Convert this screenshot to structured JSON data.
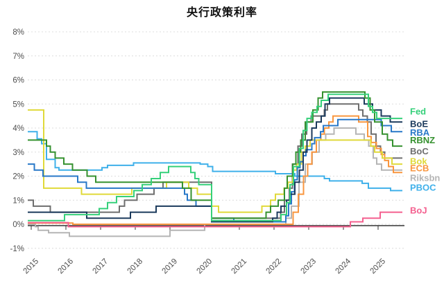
{
  "title": "央行政策利率",
  "chart_data": {
    "type": "line",
    "title": "央行政策利率",
    "line_style": "step-after",
    "grid": true,
    "legend_position": "right",
    "x_axis": {
      "range": [
        2014.9,
        2025.7
      ],
      "ticks": [
        2015,
        2016,
        2017,
        2018,
        2019,
        2020,
        2021,
        2022,
        2023,
        2024,
        2025
      ],
      "labels": [
        "2015",
        "2016",
        "2017",
        "2018",
        "2019",
        "2020",
        "2021",
        "2022",
        "2023",
        "2024",
        "2025"
      ],
      "zero_line": true
    },
    "y_axis": {
      "range": [
        -1.4,
        8.6
      ],
      "ticks": [
        8,
        7,
        6,
        5,
        4,
        3,
        2,
        1,
        0,
        -1
      ],
      "labels": [
        "8%",
        "7%",
        "6%",
        "5%",
        "4%",
        "3%",
        "2%",
        "1%",
        "0%",
        "-1%"
      ]
    },
    "colors": {
      "grid": "#dcdcdc",
      "axis_text": "#4d4d4d",
      "zero_axis": "#333333",
      "title": "#111111"
    },
    "series": [
      {
        "name": "PBOC",
        "color": "#3fb0ea",
        "legend_y_pct": 1.53,
        "points": [
          [
            2014.9,
            3.85
          ],
          [
            2015.17,
            3.55
          ],
          [
            2015.3,
            3.35
          ],
          [
            2015.44,
            2.7
          ],
          [
            2015.69,
            2.35
          ],
          [
            2015.8,
            2.25
          ],
          [
            2017.04,
            2.35
          ],
          [
            2017.2,
            2.45
          ],
          [
            2017.95,
            2.55
          ],
          [
            2019.87,
            2.5
          ],
          [
            2020.09,
            2.4
          ],
          [
            2020.23,
            2.2
          ],
          [
            2022.04,
            2.1
          ],
          [
            2022.6,
            2.0
          ],
          [
            2023.45,
            1.9
          ],
          [
            2023.6,
            1.8
          ],
          [
            2024.54,
            1.7
          ],
          [
            2024.72,
            1.5
          ],
          [
            2025.36,
            1.4
          ]
        ]
      },
      {
        "name": "Riksbn",
        "color": "#b5b5b5",
        "legend_y_pct": 1.93,
        "points": [
          [
            2014.9,
            0.0
          ],
          [
            2015.12,
            -0.1
          ],
          [
            2015.2,
            -0.25
          ],
          [
            2015.5,
            -0.35
          ],
          [
            2016.1,
            -0.5
          ],
          [
            2019.0,
            -0.25
          ],
          [
            2020.0,
            0.0
          ],
          [
            2022.34,
            0.25
          ],
          [
            2022.5,
            0.75
          ],
          [
            2022.72,
            1.75
          ],
          [
            2022.9,
            2.5
          ],
          [
            2023.1,
            3.0
          ],
          [
            2023.3,
            3.5
          ],
          [
            2023.49,
            3.75
          ],
          [
            2023.73,
            4.0
          ],
          [
            2024.36,
            3.75
          ],
          [
            2024.6,
            3.5
          ],
          [
            2024.73,
            3.25
          ],
          [
            2024.86,
            2.75
          ],
          [
            2024.96,
            2.5
          ],
          [
            2025.1,
            2.25
          ]
        ]
      },
      {
        "name": "BoC",
        "color": "#6e6e6e",
        "legend_y_pct": 3.04,
        "points": [
          [
            2014.9,
            1.0
          ],
          [
            2015.06,
            0.75
          ],
          [
            2015.55,
            0.5
          ],
          [
            2017.54,
            0.75
          ],
          [
            2017.69,
            1.0
          ],
          [
            2018.05,
            1.25
          ],
          [
            2018.54,
            1.5
          ],
          [
            2018.8,
            1.75
          ],
          [
            2020.2,
            0.25
          ],
          [
            2022.19,
            0.5
          ],
          [
            2022.3,
            1.0
          ],
          [
            2022.44,
            1.5
          ],
          [
            2022.53,
            2.5
          ],
          [
            2022.69,
            3.25
          ],
          [
            2022.8,
            3.75
          ],
          [
            2022.94,
            4.25
          ],
          [
            2023.07,
            4.5
          ],
          [
            2023.45,
            4.75
          ],
          [
            2023.54,
            5.0
          ],
          [
            2024.44,
            4.75
          ],
          [
            2024.56,
            4.5
          ],
          [
            2024.69,
            4.25
          ],
          [
            2024.8,
            3.75
          ],
          [
            2024.94,
            3.25
          ],
          [
            2025.07,
            3.0
          ],
          [
            2025.19,
            2.75
          ]
        ]
      },
      {
        "name": "ECB",
        "color": "#f9963f",
        "legend_y_pct": 2.33,
        "points": [
          [
            2014.9,
            0.05
          ],
          [
            2016.2,
            0.0
          ],
          [
            2022.55,
            0.5
          ],
          [
            2022.7,
            1.25
          ],
          [
            2022.85,
            2.0
          ],
          [
            2022.97,
            2.5
          ],
          [
            2023.09,
            3.0
          ],
          [
            2023.22,
            3.5
          ],
          [
            2023.35,
            3.75
          ],
          [
            2023.45,
            4.0
          ],
          [
            2023.58,
            4.25
          ],
          [
            2023.7,
            4.5
          ],
          [
            2024.44,
            4.25
          ],
          [
            2024.7,
            3.65
          ],
          [
            2024.8,
            3.4
          ],
          [
            2024.95,
            3.15
          ],
          [
            2025.09,
            2.9
          ],
          [
            2025.19,
            2.65
          ],
          [
            2025.3,
            2.4
          ],
          [
            2025.44,
            2.15
          ]
        ]
      },
      {
        "name": "BoJ",
        "color": "#f4608f",
        "legend_y_pct": 0.57,
        "points": [
          [
            2014.9,
            0.07
          ],
          [
            2016.07,
            -0.1
          ],
          [
            2024.2,
            0.1
          ],
          [
            2024.56,
            0.25
          ],
          [
            2025.06,
            0.5
          ]
        ]
      },
      {
        "name": "Bok",
        "color": "#e0d939",
        "legend_y_pct": 2.62,
        "points": [
          [
            2014.9,
            4.75
          ],
          [
            2015.36,
            1.5
          ],
          [
            2016.45,
            1.25
          ],
          [
            2017.9,
            1.5
          ],
          [
            2018.9,
            1.75
          ],
          [
            2019.54,
            1.5
          ],
          [
            2019.79,
            1.25
          ],
          [
            2020.2,
            0.75
          ],
          [
            2020.4,
            0.5
          ],
          [
            2021.65,
            0.75
          ],
          [
            2021.9,
            1.0
          ],
          [
            2022.04,
            1.25
          ],
          [
            2022.29,
            1.5
          ],
          [
            2022.4,
            1.75
          ],
          [
            2022.54,
            2.25
          ],
          [
            2022.65,
            2.5
          ],
          [
            2022.79,
            3.0
          ],
          [
            2022.9,
            3.25
          ],
          [
            2023.04,
            3.5
          ],
          [
            2024.79,
            3.25
          ],
          [
            2024.9,
            3.0
          ],
          [
            2025.12,
            2.75
          ],
          [
            2025.4,
            2.5
          ]
        ]
      },
      {
        "name": "RBA",
        "color": "#2878c8",
        "legend_y_pct": 3.82,
        "points": [
          [
            2014.9,
            2.5
          ],
          [
            2015.09,
            2.25
          ],
          [
            2015.34,
            2.0
          ],
          [
            2016.34,
            1.75
          ],
          [
            2016.59,
            1.5
          ],
          [
            2019.42,
            1.25
          ],
          [
            2019.5,
            1.0
          ],
          [
            2019.75,
            0.75
          ],
          [
            2020.2,
            0.25
          ],
          [
            2020.84,
            0.1
          ],
          [
            2022.34,
            0.35
          ],
          [
            2022.42,
            0.85
          ],
          [
            2022.5,
            1.35
          ],
          [
            2022.59,
            1.85
          ],
          [
            2022.67,
            2.35
          ],
          [
            2022.75,
            2.6
          ],
          [
            2022.84,
            2.85
          ],
          [
            2022.92,
            3.1
          ],
          [
            2023.09,
            3.35
          ],
          [
            2023.17,
            3.6
          ],
          [
            2023.34,
            3.85
          ],
          [
            2023.42,
            4.1
          ],
          [
            2023.84,
            4.35
          ],
          [
            2025.09,
            4.1
          ],
          [
            2025.38,
            3.85
          ]
        ]
      },
      {
        "name": "BoE",
        "color": "#1b3a5c",
        "legend_y_pct": 4.17,
        "points": [
          [
            2014.9,
            0.5
          ],
          [
            2016.6,
            0.25
          ],
          [
            2017.86,
            0.5
          ],
          [
            2018.6,
            0.75
          ],
          [
            2020.2,
            0.1
          ],
          [
            2021.96,
            0.25
          ],
          [
            2022.09,
            0.5
          ],
          [
            2022.2,
            0.75
          ],
          [
            2022.36,
            1.0
          ],
          [
            2022.46,
            1.25
          ],
          [
            2022.6,
            1.75
          ],
          [
            2022.73,
            2.25
          ],
          [
            2022.84,
            3.0
          ],
          [
            2022.95,
            3.5
          ],
          [
            2023.09,
            4.0
          ],
          [
            2023.22,
            4.25
          ],
          [
            2023.36,
            4.5
          ],
          [
            2023.47,
            5.0
          ],
          [
            2023.6,
            5.25
          ],
          [
            2024.6,
            5.0
          ],
          [
            2024.84,
            4.75
          ],
          [
            2025.09,
            4.5
          ],
          [
            2025.35,
            4.25
          ]
        ]
      },
      {
        "name": "RBNZ",
        "color": "#35912f",
        "legend_y_pct": 3.49,
        "points": [
          [
            2014.9,
            3.5
          ],
          [
            2015.44,
            3.25
          ],
          [
            2015.55,
            3.0
          ],
          [
            2015.69,
            2.75
          ],
          [
            2015.94,
            2.5
          ],
          [
            2016.19,
            2.25
          ],
          [
            2016.61,
            2.0
          ],
          [
            2016.86,
            1.75
          ],
          [
            2019.36,
            1.5
          ],
          [
            2019.61,
            1.0
          ],
          [
            2020.2,
            0.25
          ],
          [
            2021.77,
            0.5
          ],
          [
            2021.9,
            0.75
          ],
          [
            2022.12,
            1.0
          ],
          [
            2022.3,
            1.5
          ],
          [
            2022.38,
            2.0
          ],
          [
            2022.54,
            2.5
          ],
          [
            2022.63,
            3.0
          ],
          [
            2022.77,
            3.5
          ],
          [
            2022.9,
            4.25
          ],
          [
            2023.12,
            4.75
          ],
          [
            2023.27,
            5.25
          ],
          [
            2023.4,
            5.5
          ],
          [
            2024.62,
            5.25
          ],
          [
            2024.77,
            4.75
          ],
          [
            2024.9,
            4.25
          ],
          [
            2025.12,
            3.75
          ],
          [
            2025.27,
            3.5
          ],
          [
            2025.42,
            3.25
          ]
        ]
      },
      {
        "name": "Fed",
        "color": "#35d07a",
        "legend_y_pct": 4.69,
        "points": [
          [
            2014.9,
            0.15
          ],
          [
            2015.96,
            0.4
          ],
          [
            2016.96,
            0.65
          ],
          [
            2017.2,
            0.9
          ],
          [
            2017.46,
            1.15
          ],
          [
            2017.96,
            1.4
          ],
          [
            2018.2,
            1.65
          ],
          [
            2018.46,
            1.9
          ],
          [
            2018.72,
            2.15
          ],
          [
            2018.96,
            2.4
          ],
          [
            2019.6,
            2.15
          ],
          [
            2019.72,
            1.9
          ],
          [
            2019.83,
            1.65
          ],
          [
            2020.2,
            0.15
          ],
          [
            2022.2,
            0.4
          ],
          [
            2022.36,
            0.9
          ],
          [
            2022.46,
            1.65
          ],
          [
            2022.56,
            2.4
          ],
          [
            2022.73,
            3.15
          ],
          [
            2022.84,
            3.9
          ],
          [
            2022.95,
            4.4
          ],
          [
            2023.09,
            4.65
          ],
          [
            2023.24,
            4.9
          ],
          [
            2023.36,
            5.15
          ],
          [
            2023.56,
            5.4
          ],
          [
            2024.72,
            4.9
          ],
          [
            2024.84,
            4.65
          ],
          [
            2024.96,
            4.4
          ]
        ]
      }
    ]
  }
}
